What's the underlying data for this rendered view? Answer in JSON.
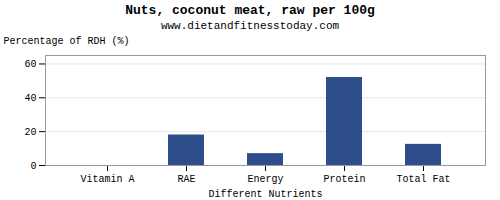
{
  "chart_data": {
    "type": "bar",
    "title": "Nuts, coconut meat, raw per 100g",
    "subtitle": "www.dietandfitnesstoday.com",
    "categories": [
      "Vitamin A",
      "RAE",
      "Energy",
      "Protein",
      "Total Fat"
    ],
    "values": [
      0.0,
      18.0,
      7.0,
      52.0,
      12.5
    ],
    "color": "#2d4d8b",
    "xlabel": "Different Nutrients",
    "ylabel": "Percentage of RDH (%)",
    "ylim": [
      0,
      65
    ],
    "yticks": [
      0,
      20,
      40,
      60
    ],
    "grid": true
  }
}
